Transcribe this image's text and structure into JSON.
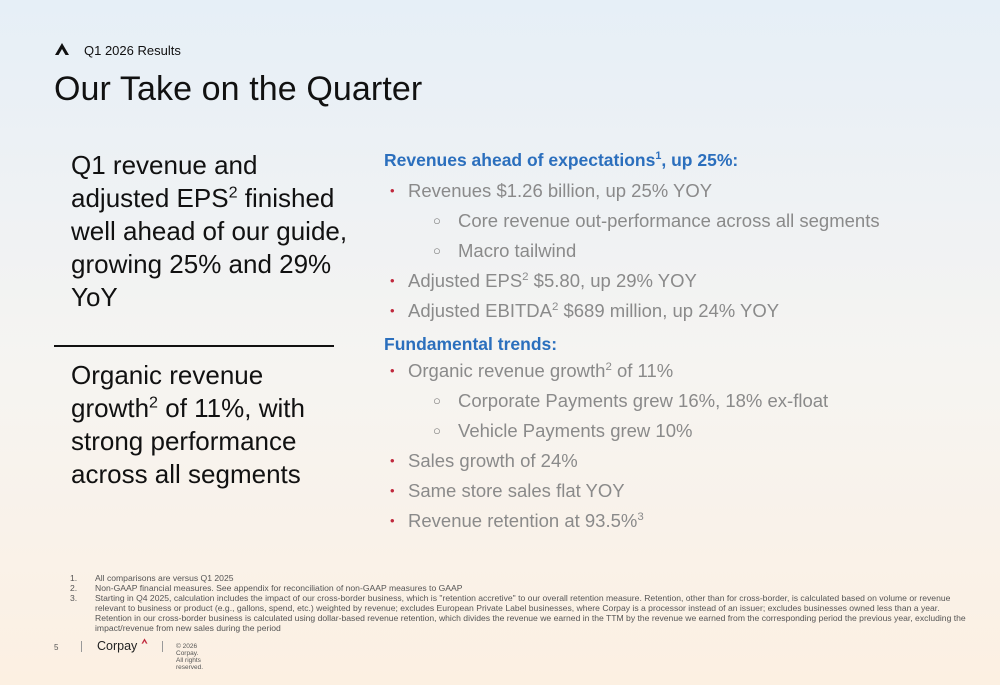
{
  "header": {
    "label": "Q1 2026 Results",
    "title": "Our Take on the Quarter"
  },
  "left": {
    "top": {
      "pre": "Q1 revenue and adjusted EPS",
      "sup": "2",
      "post": " finished well ahead of our guide, growing 25% and 29% YoY"
    },
    "bottom": {
      "pre": "Organic revenue growth",
      "sup": "2",
      "post": " of 11%, with strong performance across all segments"
    }
  },
  "right": {
    "revenues": {
      "heading": {
        "pre": "Revenues ahead of expectations",
        "sup": "1",
        "post": ", up 25%:"
      },
      "b1": "Revenues $1.26 billion, up 25% YOY",
      "b1_sub1": "Core revenue out-performance across all segments",
      "b1_sub2": "Macro tailwind",
      "b2": {
        "pre": "Adjusted EPS",
        "sup": "2",
        "post": " $5.80, up 29% YOY"
      },
      "b3": {
        "pre": "Adjusted EBITDA",
        "sup": "2",
        "post": " $689 million, up 24% YOY"
      }
    },
    "trends": {
      "heading": "Fundamental trends:",
      "b1": {
        "pre": "Organic revenue growth",
        "sup": "2",
        "post": " of 11%"
      },
      "b1_sub1": "Corporate Payments grew 16%, 18% ex-float",
      "b1_sub2": "Vehicle Payments grew 10%",
      "b2": "Sales growth of 24%",
      "b3": "Same store sales flat YOY",
      "b4": {
        "pre": "Revenue retention at 93.5%",
        "sup": "3"
      }
    }
  },
  "footnotes": [
    {
      "num": "1.",
      "text": "All comparisons are versus Q1 2025"
    },
    {
      "num": "2.",
      "text": "Non-GAAP financial measures. See appendix for reconciliation of non-GAAP measures to GAAP"
    },
    {
      "num": "3.",
      "text": "Starting in Q4 2025, calculation includes the impact of our cross-border business, which is \"retention accretive\" to our overall retention measure. Retention, other than for cross-border, is calculated based on volume or revenue relevant to business or product (e.g., gallons, spend, etc.) weighted by revenue; excludes European Private Label businesses, where Corpay is a processor instead of an issuer; excludes businesses owned less than a year. Retention in our cross-border business is calculated using dollar-based revenue retention, which divides the revenue we earned in the TTM by the revenue we earned from the corresponding period the previous year, excluding the impact/revenue from new sales during the period"
    }
  ],
  "footer": {
    "page": "5",
    "brand": "Corpay",
    "copyright": "© 2026 Corpay. All rights reserved."
  },
  "colors": {
    "heading_blue": "#2b6fbd",
    "bullet_red": "#c0283c",
    "body_gray": "#8a8a8a"
  }
}
